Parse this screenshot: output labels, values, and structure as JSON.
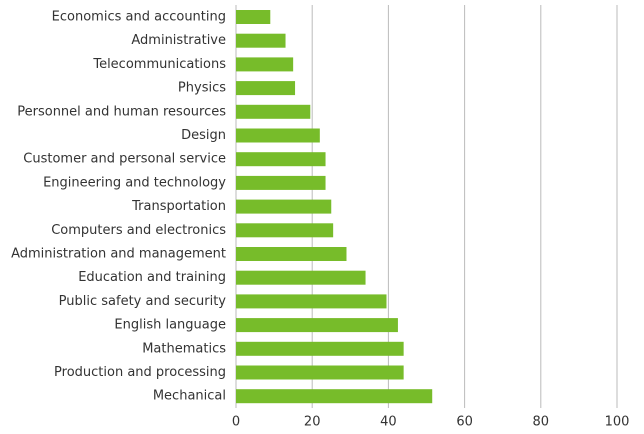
{
  "chart_data": {
    "type": "hbar",
    "categories": [
      "Economics and accounting",
      "Administrative",
      "Telecommunications",
      "Physics",
      "Personnel and human resources",
      "Design",
      "Customer and personal service",
      "Engineering and technology",
      "Transportation",
      "Computers and electronics",
      "Administration and management",
      "Education and training",
      "Public safety and security",
      "English language",
      "Mathematics",
      "Production and processing",
      "Mechanical"
    ],
    "values": [
      9,
      13,
      15,
      15.5,
      19.5,
      22,
      23.5,
      23.5,
      25,
      25.5,
      29,
      34,
      39.5,
      42.5,
      44,
      44,
      51.5
    ],
    "color": "#77bc2a",
    "xlim": [
      0,
      100
    ],
    "xticks": [
      0,
      20,
      40,
      60,
      80,
      100
    ],
    "grid": true
  }
}
